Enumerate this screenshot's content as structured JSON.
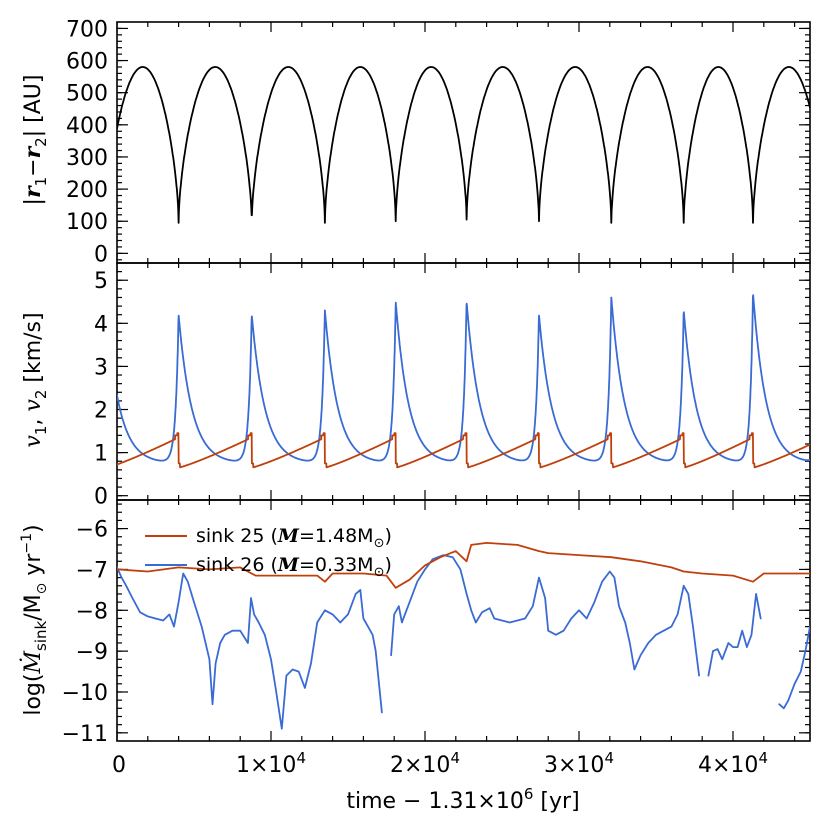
{
  "colors": {
    "sink25": "#c0400c",
    "sink26": "#3a6bd4",
    "separation": "#000000"
  },
  "chart_data": [
    {
      "type": "line",
      "panel": "top",
      "ylabel": {
        "open": "|",
        "r1": "r",
        "sub1": "1",
        "minus": "−",
        "r2": "r",
        "sub2": "2",
        "close": "|",
        "unit": " [AU]"
      },
      "yticks": [
        "0",
        "100",
        "200",
        "300",
        "400",
        "500",
        "600",
        "700"
      ],
      "ylim": [
        -30,
        720
      ],
      "series": [
        {
          "name": "separation",
          "color": "#000000",
          "periastron_times": [
            4000,
            8750,
            13500,
            18100,
            22700,
            27400,
            32100,
            36800,
            41300
          ],
          "apastron_au": 580,
          "periastron_au": [
            95,
            95,
            95,
            100,
            105,
            100,
            95,
            95,
            95
          ]
        }
      ]
    },
    {
      "type": "line",
      "panel": "middle",
      "ylabel": {
        "v1": "v",
        "sub1": "1",
        "sep": ",  ",
        "v2": "v",
        "sub2": "2",
        "unit": "  [km/s]"
      },
      "yticks": [
        "0",
        "1",
        "2",
        "3",
        "4",
        "5"
      ],
      "ylim": [
        -0.1,
        5.4
      ],
      "series": [
        {
          "name": "v1 (sink 25)",
          "color": "#c0400c",
          "min": 0.65,
          "peak": 1.45
        },
        {
          "name": "v2 (sink 26)",
          "color": "#3a6bd4",
          "min": 0.75,
          "peaks": [
            4.2,
            4.2,
            4.3,
            4.5,
            4.5,
            4.2,
            4.6,
            4.3,
            4.7
          ]
        }
      ]
    },
    {
      "type": "line",
      "panel": "bottom",
      "ylabel": {
        "prefix": "log(",
        "mdot": "Ṁ",
        "sub": "sink",
        "mid": "/M",
        "sun": "⊙",
        "tail": " yr",
        "exp": "−1",
        "close": ")"
      },
      "yticks": [
        "−11",
        "−10",
        "−9",
        "−8",
        "−7",
        "−6"
      ],
      "ylim": [
        -11.2,
        -5.3
      ],
      "legend": [
        {
          "label": "sink 25  (",
          "sym": "M",
          "eq": "=1.48M",
          "sun": "⊙",
          "close": ")",
          "color": "#c0400c"
        },
        {
          "label": "sink 26  (",
          "sym": "M",
          "eq": "=0.33M",
          "sun": "⊙",
          "close": ")",
          "color": "#3a6bd4"
        }
      ],
      "series": [
        {
          "name": "sink 25",
          "color": "#c0400c",
          "points": [
            [
              0,
              -7.0
            ],
            [
              2000,
              -7.05
            ],
            [
              4000,
              -6.95
            ],
            [
              6000,
              -7.0
            ],
            [
              8000,
              -6.95
            ],
            [
              9000,
              -7.15
            ],
            [
              11000,
              -7.15
            ],
            [
              13000,
              -7.15
            ],
            [
              13500,
              -7.3
            ],
            [
              14000,
              -7.1
            ],
            [
              16000,
              -7.1
            ],
            [
              17500,
              -7.15
            ],
            [
              18100,
              -7.45
            ],
            [
              19000,
              -7.25
            ],
            [
              20000,
              -6.9
            ],
            [
              21000,
              -6.7
            ],
            [
              22000,
              -6.55
            ],
            [
              22700,
              -6.8
            ],
            [
              23000,
              -6.4
            ],
            [
              24000,
              -6.35
            ],
            [
              26000,
              -6.4
            ],
            [
              27400,
              -6.55
            ],
            [
              28000,
              -6.6
            ],
            [
              30000,
              -6.65
            ],
            [
              32100,
              -6.7
            ],
            [
              34000,
              -6.8
            ],
            [
              36000,
              -6.95
            ],
            [
              36800,
              -7.05
            ],
            [
              38000,
              -7.1
            ],
            [
              40000,
              -7.15
            ],
            [
              41300,
              -7.3
            ],
            [
              42000,
              -7.1
            ],
            [
              45000,
              -7.1
            ]
          ]
        },
        {
          "name": "sink 26",
          "color": "#3a6bd4",
          "segments": [
            [
              [
                0,
                -6.95
              ],
              [
                300,
                -7.2
              ],
              [
                600,
                -7.4
              ],
              [
                1000,
                -7.7
              ],
              [
                1500,
                -8.05
              ],
              [
                2000,
                -8.15
              ],
              [
                2500,
                -8.2
              ],
              [
                3000,
                -8.25
              ],
              [
                3400,
                -8.1
              ],
              [
                3700,
                -8.4
              ],
              [
                4000,
                -7.8
              ],
              [
                4300,
                -7.1
              ],
              [
                4600,
                -7.3
              ],
              [
                5000,
                -7.8
              ],
              [
                5500,
                -8.4
              ],
              [
                6000,
                -9.2
              ],
              [
                6200,
                -10.3
              ],
              [
                6400,
                -9.3
              ],
              [
                6700,
                -8.8
              ],
              [
                7000,
                -8.6
              ],
              [
                7500,
                -8.5
              ],
              [
                8000,
                -8.5
              ],
              [
                8500,
                -8.8
              ],
              [
                8700,
                -7.7
              ],
              [
                8900,
                -8.1
              ],
              [
                9200,
                -8.3
              ],
              [
                9600,
                -8.6
              ],
              [
                10000,
                -9.2
              ],
              [
                10300,
                -9.9
              ],
              [
                10700,
                -10.9
              ],
              [
                11000,
                -9.6
              ],
              [
                11400,
                -9.45
              ],
              [
                11800,
                -9.5
              ],
              [
                12200,
                -9.9
              ],
              [
                12600,
                -9.3
              ],
              [
                13000,
                -8.3
              ],
              [
                13500,
                -8.0
              ],
              [
                14000,
                -8.1
              ],
              [
                14500,
                -8.3
              ],
              [
                15000,
                -8.1
              ],
              [
                15500,
                -7.6
              ],
              [
                15800,
                -7.5
              ],
              [
                16000,
                -8.2
              ],
              [
                16300,
                -8.4
              ],
              [
                16600,
                -8.6
              ],
              [
                16800,
                -9.0
              ],
              [
                17200,
                -10.5
              ]
            ],
            [
              [
                17800,
                -9.1
              ],
              [
                18000,
                -8.1
              ],
              [
                18300,
                -7.9
              ],
              [
                18500,
                -8.3
              ],
              [
                19000,
                -7.8
              ],
              [
                19500,
                -7.3
              ],
              [
                20000,
                -7.0
              ],
              [
                20500,
                -6.75
              ],
              [
                21200,
                -6.65
              ],
              [
                21800,
                -6.7
              ],
              [
                22300,
                -7.0
              ],
              [
                22700,
                -7.6
              ],
              [
                23000,
                -8.0
              ],
              [
                23300,
                -8.3
              ],
              [
                23700,
                -8.05
              ],
              [
                24200,
                -7.95
              ],
              [
                24500,
                -8.2
              ],
              [
                25000,
                -8.25
              ],
              [
                25500,
                -8.3
              ],
              [
                26000,
                -8.25
              ],
              [
                26500,
                -8.2
              ],
              [
                27000,
                -7.9
              ],
              [
                27400,
                -7.2
              ],
              [
                27800,
                -7.7
              ],
              [
                28000,
                -8.5
              ],
              [
                28500,
                -8.6
              ],
              [
                29000,
                -8.5
              ],
              [
                29500,
                -8.2
              ],
              [
                30000,
                -8.0
              ],
              [
                30500,
                -8.2
              ],
              [
                31000,
                -7.8
              ],
              [
                31500,
                -7.3
              ],
              [
                32000,
                -7.05
              ],
              [
                32300,
                -7.2
              ],
              [
                32600,
                -7.9
              ],
              [
                33000,
                -8.3
              ],
              [
                33300,
                -8.8
              ],
              [
                33600,
                -9.45
              ],
              [
                34000,
                -9.1
              ],
              [
                34500,
                -8.8
              ],
              [
                35000,
                -8.6
              ],
              [
                35500,
                -8.5
              ],
              [
                36000,
                -8.4
              ],
              [
                36400,
                -8.1
              ],
              [
                36800,
                -7.4
              ],
              [
                37100,
                -7.6
              ],
              [
                37400,
                -8.4
              ],
              [
                37600,
                -9.0
              ],
              [
                37800,
                -9.6
              ]
            ],
            [
              [
                38400,
                -9.6
              ],
              [
                38700,
                -9.0
              ],
              [
                39000,
                -8.95
              ],
              [
                39300,
                -9.2
              ],
              [
                39700,
                -8.8
              ],
              [
                40000,
                -8.9
              ],
              [
                40300,
                -8.9
              ],
              [
                40600,
                -8.5
              ],
              [
                40900,
                -8.9
              ],
              [
                41200,
                -8.6
              ],
              [
                41500,
                -7.6
              ],
              [
                41800,
                -8.2
              ]
            ],
            [
              [
                43000,
                -10.3
              ],
              [
                43300,
                -10.4
              ],
              [
                43600,
                -10.2
              ],
              [
                44000,
                -9.8
              ],
              [
                44400,
                -9.5
              ],
              [
                44700,
                -9.0
              ],
              [
                45000,
                -8.4
              ]
            ]
          ]
        }
      ]
    }
  ],
  "xaxis": {
    "xlim": [
      0,
      45000
    ],
    "ticks": [
      {
        "value": 0,
        "label": "0"
      },
      {
        "value": 10000,
        "label": "1×10",
        "exp": "4"
      },
      {
        "value": 20000,
        "label": "2×10",
        "exp": "4"
      },
      {
        "value": 30000,
        "label": "3×10",
        "exp": "4"
      },
      {
        "value": 40000,
        "label": "4×10",
        "exp": "4"
      }
    ],
    "label": {
      "text": "time  −  1.31×10",
      "exp": "6",
      "unit": " [yr]"
    }
  }
}
